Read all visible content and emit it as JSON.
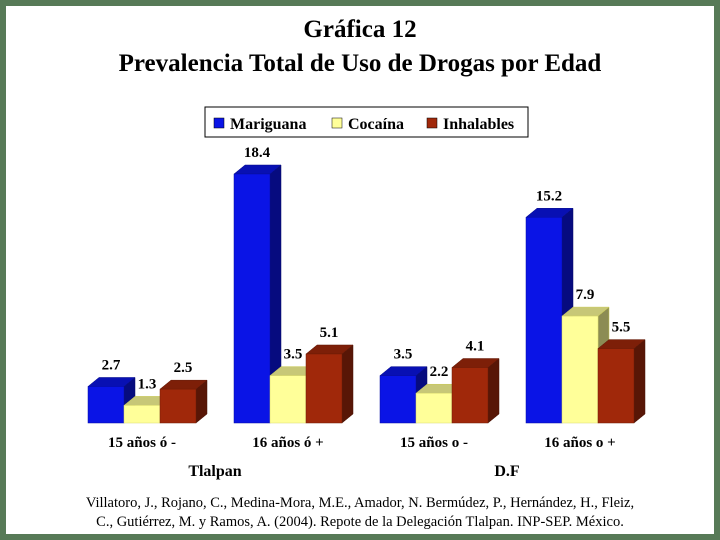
{
  "page": {
    "title_line1": "Gráfica 12",
    "title_line2": "Prevalencia Total de Uso de Drogas por Edad",
    "citation_line1": "Villatoro, J., Rojano, C., Medina-Mora, M.E., Amador, N. Bermúdez, P., Hernández, H., Fleiz,",
    "citation_line2": "C., Gutiérrez, M. y Ramos, A. (2004). Repote de la Delegación Tlalpan. INP-SEP. México."
  },
  "chart_data": {
    "type": "bar",
    "title": "Gráfica 12 Prevalencia Total de Uso de Drogas por Edad",
    "categories": [
      "15 años ó -",
      "16 años ó +",
      "15 años o -",
      "16 años o +"
    ],
    "groups": [
      {
        "label": "Tlalpan",
        "categories": [
          0,
          1
        ]
      },
      {
        "label": "D.F",
        "categories": [
          2,
          3
        ]
      }
    ],
    "series": [
      {
        "name": "Mariguana",
        "values": [
          2.7,
          18.4,
          3.5,
          15.2
        ],
        "color": "#0a14e6",
        "labels": [
          "2.7",
          "18.4",
          "3.5",
          "15.2"
        ]
      },
      {
        "name": "Cocaína",
        "values": [
          1.3,
          3.5,
          2.2,
          7.9
        ],
        "color": "#ffff99",
        "labels": [
          "1.3",
          "3.5",
          "2.2",
          "7.9"
        ]
      },
      {
        "name": "Inhalables",
        "values": [
          2.5,
          5.1,
          4.1,
          5.5
        ],
        "color": "#a0280a",
        "labels": [
          "2.5",
          "5.1",
          "4.1",
          "5.5"
        ]
      }
    ],
    "ylim": [
      0,
      20
    ],
    "legend_position": "top",
    "grid": false,
    "three_d": true,
    "xlabel": "",
    "ylabel": ""
  }
}
